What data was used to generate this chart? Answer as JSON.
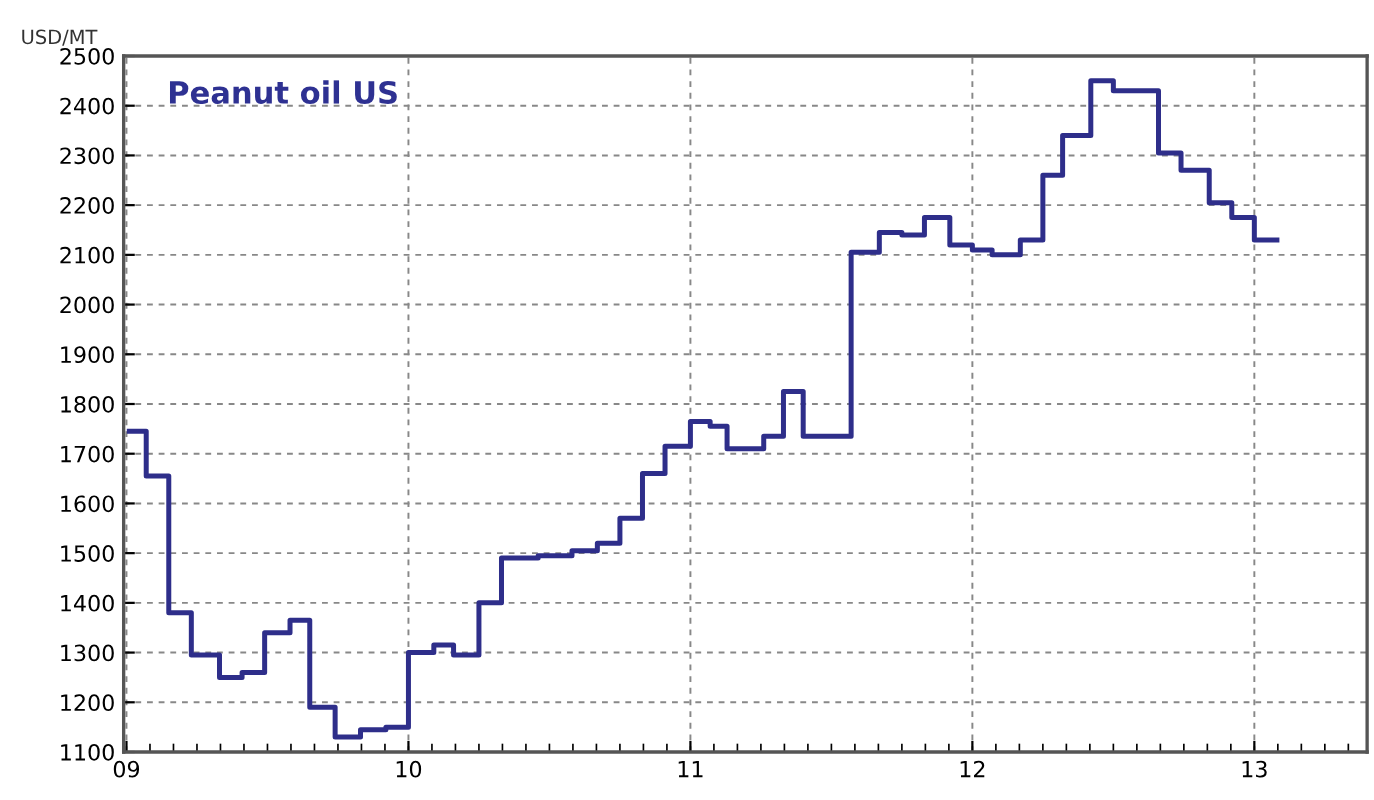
{
  "chart_data": {
    "type": "step",
    "title": "Peanut oil US",
    "ylabel": "USD/MT",
    "x": [
      9.01,
      9.07,
      9.15,
      9.23,
      9.33,
      9.41,
      9.49,
      9.58,
      9.65,
      9.74,
      9.83,
      9.92,
      10.0,
      10.09,
      10.16,
      10.25,
      10.33,
      10.46,
      10.58,
      10.67,
      10.75,
      10.83,
      10.91,
      11.0,
      11.07,
      11.13,
      11.26,
      11.33,
      11.4,
      11.57,
      11.67,
      11.75,
      11.83,
      11.92,
      12.0,
      12.07,
      12.17,
      12.25,
      12.32,
      12.42,
      12.5,
      12.66,
      12.74,
      12.84,
      12.92,
      13.0,
      13.08
    ],
    "series": [
      {
        "color": "#2e2e8a",
        "values": [
          1745,
          1655,
          1380,
          1295,
          1250,
          1260,
          1340,
          1365,
          1190,
          1130,
          1145,
          1150,
          1300,
          1315,
          1295,
          1400,
          1490,
          1495,
          1505,
          1520,
          1570,
          1660,
          1715,
          1765,
          1755,
          1710,
          1735,
          1825,
          1735,
          2105,
          2145,
          2140,
          2175,
          2120,
          2110,
          2100,
          2130,
          2260,
          2340,
          2450,
          2430,
          2305,
          2270,
          2205,
          2175,
          2130,
          2130
        ]
      }
    ],
    "xlim": [
      8.99,
      13.4
    ],
    "xticks": [
      {
        "value": 9,
        "label": "09"
      },
      {
        "value": 10,
        "label": "10"
      },
      {
        "value": 11,
        "label": "11"
      },
      {
        "value": 12,
        "label": "12"
      },
      {
        "value": 13,
        "label": "13"
      }
    ],
    "ylim": [
      1100,
      2500
    ],
    "yticks": [
      1100,
      1200,
      1300,
      1400,
      1500,
      1600,
      1700,
      1800,
      1900,
      2000,
      2100,
      2200,
      2300,
      2400,
      2500
    ],
    "grid": true,
    "line_style": "solid",
    "marker": "none"
  }
}
